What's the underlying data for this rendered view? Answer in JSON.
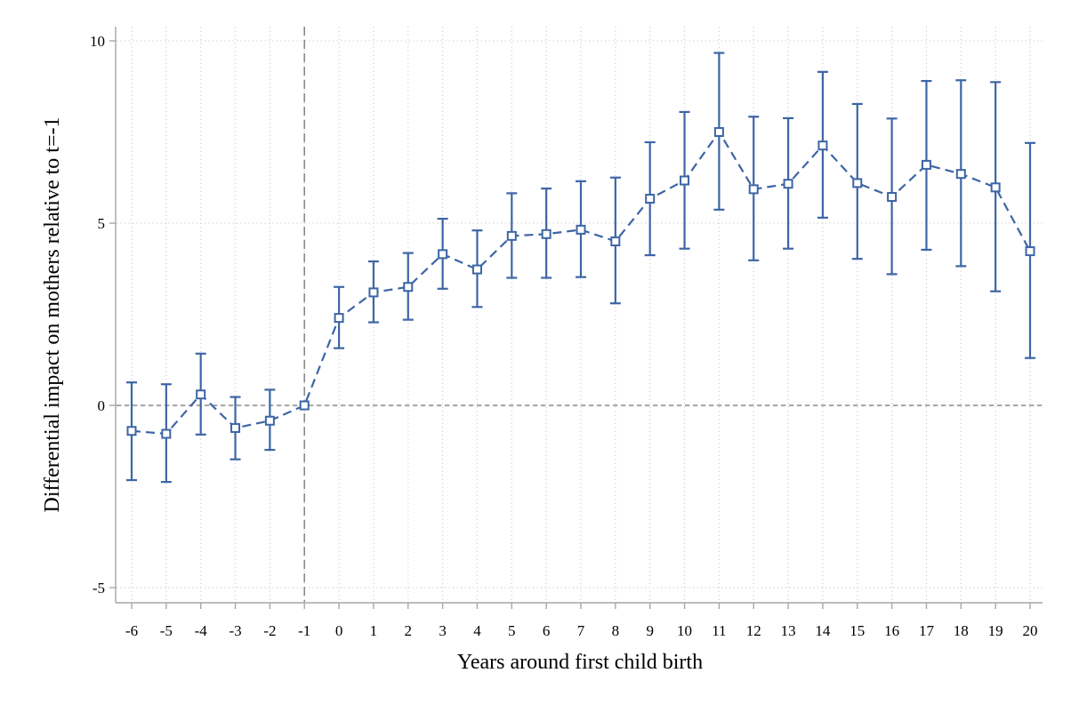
{
  "chart_data": {
    "type": "scatter",
    "xlabel": "Years around first child birth",
    "ylabel": "Differential impact on mothers relative to t=-1",
    "xlim": [
      -6,
      20
    ],
    "ylim": [
      -5,
      10
    ],
    "x_ticks": [
      -6,
      -5,
      -4,
      -3,
      -2,
      -1,
      0,
      1,
      2,
      3,
      4,
      5,
      6,
      7,
      8,
      9,
      10,
      11,
      12,
      13,
      14,
      15,
      16,
      17,
      18,
      19,
      20
    ],
    "y_ticks": [
      -5,
      0,
      5,
      10
    ],
    "x_tick_labels": [
      "-6",
      "-5",
      "-4",
      "-3",
      "-2",
      "-1",
      "0",
      "1",
      "2",
      "3",
      "4",
      "5",
      "6",
      "7",
      "8",
      "9",
      "10",
      "11",
      "12",
      "13",
      "14",
      "15",
      "16",
      "17",
      "18",
      "19",
      "20"
    ],
    "y_tick_labels": [
      "-5",
      "0",
      "5",
      "10"
    ],
    "grid": true,
    "reference_lines": {
      "horizontal_y": 0,
      "vertical_x": -1
    },
    "series": [
      {
        "x": [
          -6,
          -5,
          -4,
          -3,
          -2,
          -1,
          0,
          1,
          2,
          3,
          4,
          5,
          6,
          7,
          8,
          9,
          10,
          11,
          12,
          13,
          14,
          15,
          16,
          17,
          18,
          19,
          20
        ],
        "y": [
          -0.7,
          -0.78,
          0.3,
          -0.62,
          -0.42,
          0,
          2.4,
          3.1,
          3.25,
          4.15,
          3.73,
          4.65,
          4.7,
          4.82,
          4.5,
          5.67,
          6.17,
          7.5,
          5.93,
          6.08,
          7.13,
          6.1,
          5.72,
          6.6,
          6.35,
          5.98,
          4.23
        ],
        "lower": [
          -2.05,
          -2.1,
          -0.8,
          -1.48,
          -1.22,
          0,
          1.57,
          2.28,
          2.35,
          3.2,
          2.7,
          3.5,
          3.5,
          3.52,
          2.8,
          4.12,
          4.3,
          5.37,
          3.98,
          4.3,
          5.15,
          4.02,
          3.6,
          4.27,
          3.82,
          3.13,
          1.3
        ],
        "upper": [
          0.63,
          0.58,
          1.42,
          0.23,
          0.43,
          0,
          3.25,
          3.95,
          4.18,
          5.12,
          4.8,
          5.82,
          5.95,
          6.15,
          6.25,
          7.22,
          8.05,
          9.67,
          7.92,
          7.88,
          9.15,
          8.27,
          7.87,
          8.9,
          8.92,
          8.87,
          7.2
        ]
      }
    ]
  },
  "colors": {
    "series": "#3d65a5",
    "grid": "#d9d9d9",
    "reference": "#8a8a8a",
    "axis": "#a6a6a6"
  }
}
